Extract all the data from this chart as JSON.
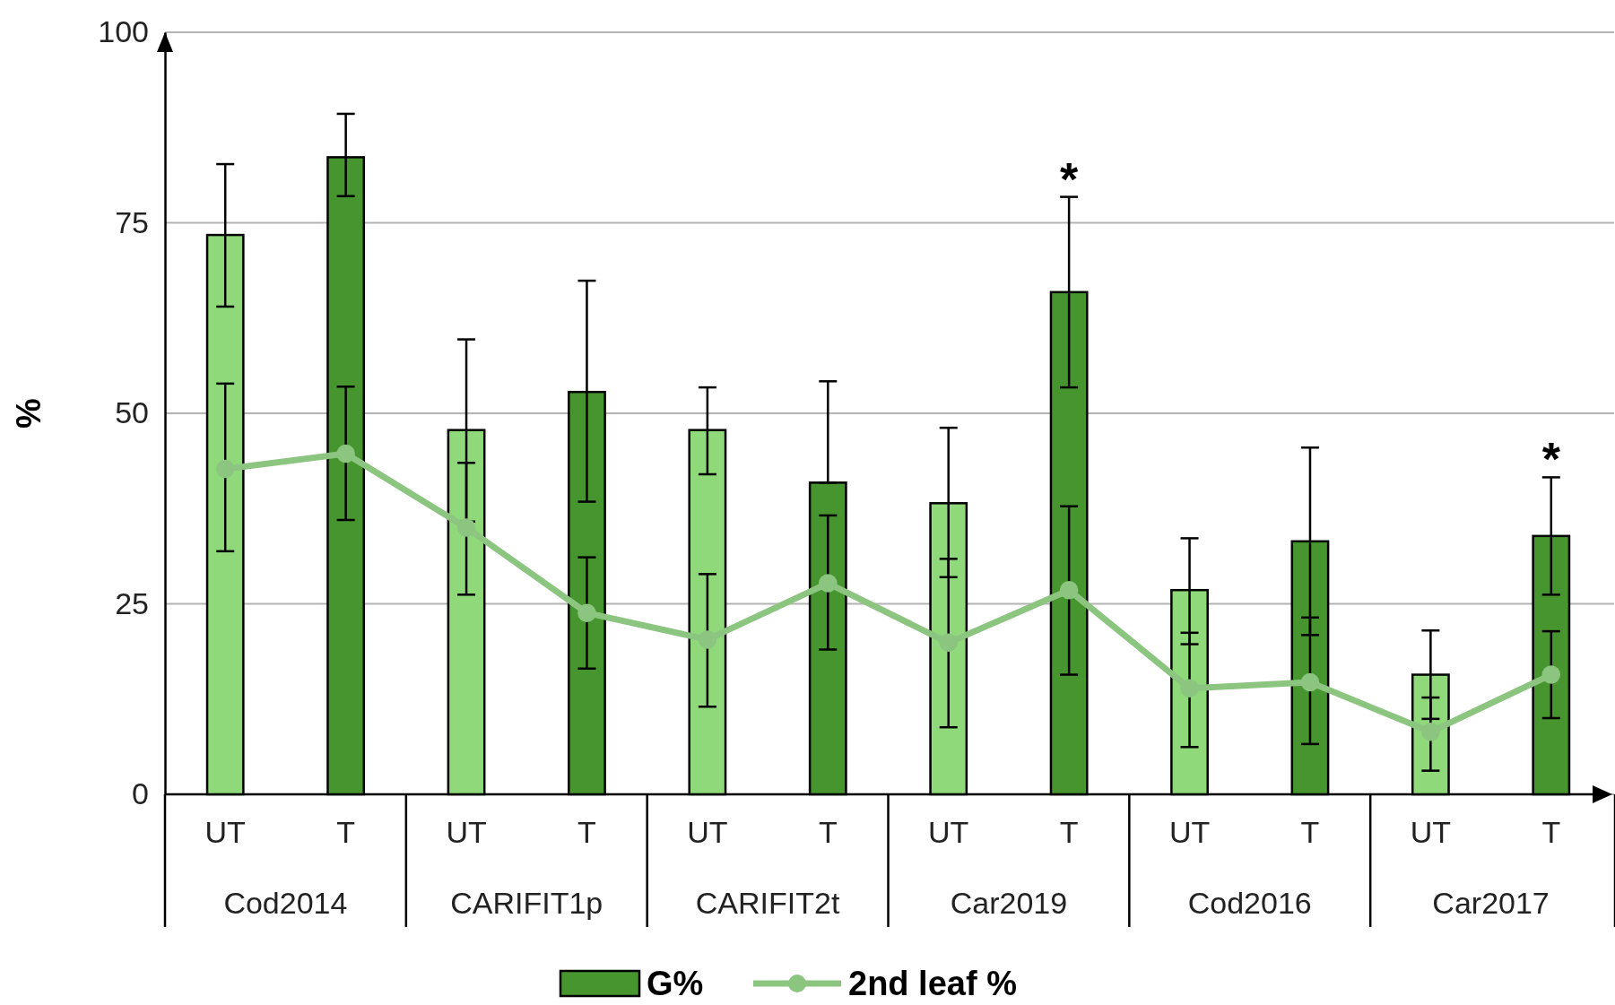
{
  "chart_data": {
    "type": "bar",
    "ylabel": "%",
    "categories": [
      "UT",
      "T",
      "UT",
      "T",
      "UT",
      "T",
      "UT",
      "T",
      "UT",
      "T",
      "UT",
      "T"
    ],
    "annotations": [
      "Cod2014",
      "CARIFIT1p",
      "CARIFIT2t",
      "Car2019",
      "Cod2016",
      "Car2017"
    ],
    "series": [
      {
        "name": "G%",
        "color": "#47952f",
        "colors": [
          "#8fd97a",
          "#47952f",
          "#8fd97a",
          "#47952f",
          "#8fd97a",
          "#47952f",
          "#8fd97a",
          "#47952f",
          "#8fd97a",
          "#47952f",
          "#8fd97a",
          "#47952f"
        ],
        "values": [
          73.4,
          83.6,
          47.8,
          52.8,
          47.8,
          40.9,
          38.2,
          65.9,
          26.8,
          33.2,
          15.7,
          33.9
        ],
        "errors": [
          [
            64,
            82.7
          ],
          [
            78.5,
            89.3
          ],
          [
            35.8,
            59.7
          ],
          [
            38.4,
            67.4
          ],
          [
            42,
            53.4
          ],
          [
            40.9,
            54.2
          ],
          [
            28.5,
            48.1
          ],
          [
            53.4,
            78.4
          ],
          [
            19.7,
            33.6
          ],
          [
            20.9,
            45.5
          ],
          [
            9.9,
            21.5
          ],
          [
            26.2,
            41.6
          ]
        ],
        "value_labels": [
          null,
          null,
          null,
          null,
          null,
          null,
          null,
          "*",
          null,
          null,
          null,
          "*"
        ]
      },
      {
        "name": "2nd leaf %",
        "type": "line",
        "color": "#8cc580",
        "values": [
          42.7,
          44.7,
          35,
          23.8,
          20.3,
          27.7,
          19.9,
          26.8,
          13.9,
          14.7,
          8.2,
          15.7
        ],
        "errors": [
          [
            31.9,
            53.9
          ],
          [
            36,
            53.5
          ],
          [
            26.2,
            43.5
          ],
          [
            16.5,
            31.1
          ],
          [
            11.5,
            28.9
          ],
          [
            19,
            36.6
          ],
          [
            8.8,
            30.9
          ],
          [
            15.7,
            37.8
          ],
          [
            6.2,
            21.2
          ],
          [
            6.6,
            23.2
          ],
          [
            3.1,
            12.7
          ],
          [
            10,
            21.4
          ]
        ]
      }
    ],
    "ylim": [
      0,
      100
    ],
    "yticks": [
      0,
      25,
      50,
      75,
      100
    ],
    "grid": "y",
    "legend": "bottom",
    "marker": "circle",
    "line_style": "solid"
  }
}
